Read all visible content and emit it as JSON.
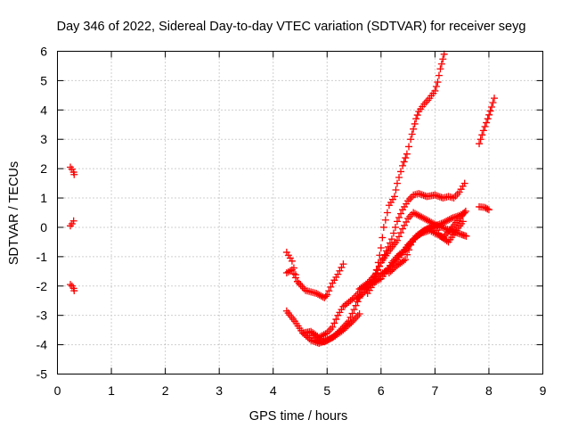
{
  "chart_data": {
    "type": "scatter",
    "title": "Day 346 of 2022, Sidereal Day-to-day VTEC variation (SDTVAR) for receiver seyg",
    "xlabel": "GPS time / hours",
    "ylabel": "SDTVAR / TECUs",
    "xlim": [
      0,
      9
    ],
    "ylim": [
      -5,
      6
    ],
    "xticks": [
      "0",
      "1",
      "2",
      "3",
      "4",
      "5",
      "6",
      "7",
      "8",
      "9"
    ],
    "yticks": [
      "-5",
      "-4",
      "-3",
      "-2",
      "-1",
      "0",
      "1",
      "2",
      "3",
      "4",
      "5",
      "6"
    ],
    "grid": true,
    "marker": "+",
    "colors": {
      "series": "#ff0000",
      "grid": "#a0a0a0",
      "axis": "#000000"
    },
    "tracks": [
      [
        [
          0.24,
          2.05
        ],
        [
          0.27,
          1.98
        ],
        [
          0.3,
          1.88
        ],
        [
          0.31,
          1.8
        ]
      ],
      [
        [
          0.24,
          0.05
        ],
        [
          0.27,
          0.12
        ],
        [
          0.3,
          0.22
        ]
      ],
      [
        [
          0.24,
          -1.95
        ],
        [
          0.27,
          -2.0
        ],
        [
          0.3,
          -2.08
        ],
        [
          0.31,
          -2.16
        ]
      ],
      [
        [
          4.25,
          -0.85
        ],
        [
          4.35,
          -1.15
        ],
        [
          4.45,
          -1.85
        ],
        [
          4.6,
          -2.15
        ],
        [
          4.8,
          -2.25
        ],
        [
          4.95,
          -2.4
        ],
        [
          5.0,
          -2.3
        ],
        [
          5.1,
          -1.9
        ],
        [
          5.2,
          -1.6
        ],
        [
          5.3,
          -1.25
        ]
      ],
      [
        [
          4.25,
          -1.55
        ],
        [
          4.35,
          -1.45
        ],
        [
          4.45,
          -1.85
        ]
      ],
      [
        [
          4.25,
          -2.85
        ],
        [
          4.4,
          -3.2
        ],
        [
          4.55,
          -3.6
        ],
        [
          4.7,
          -3.85
        ],
        [
          4.85,
          -3.95
        ],
        [
          5.0,
          -3.85
        ],
        [
          5.15,
          -3.7
        ],
        [
          5.3,
          -3.5
        ],
        [
          5.45,
          -3.25
        ],
        [
          5.6,
          -2.95
        ]
      ],
      [
        [
          4.55,
          -3.6
        ],
        [
          4.7,
          -3.55
        ],
        [
          4.85,
          -3.75
        ],
        [
          5.0,
          -3.6
        ],
        [
          5.1,
          -3.4
        ],
        [
          5.2,
          -3.0
        ],
        [
          5.3,
          -2.7
        ],
        [
          5.4,
          -2.55
        ],
        [
          5.5,
          -2.4
        ],
        [
          5.6,
          -2.2
        ],
        [
          5.7,
          -2.0
        ],
        [
          5.85,
          -1.85
        ],
        [
          6.0,
          -1.6
        ],
        [
          6.15,
          -1.4
        ],
        [
          6.3,
          -1.1
        ],
        [
          6.5,
          -0.6
        ],
        [
          6.7,
          -0.25
        ],
        [
          6.85,
          -0.05
        ],
        [
          7.0,
          0.05
        ],
        [
          7.15,
          0.15
        ],
        [
          7.3,
          0.3
        ],
        [
          7.45,
          0.4
        ],
        [
          7.55,
          0.5
        ]
      ],
      [
        [
          4.7,
          -3.6
        ],
        [
          4.8,
          -3.85
        ],
        [
          4.95,
          -3.9
        ],
        [
          5.1,
          -3.75
        ],
        [
          5.25,
          -3.5
        ],
        [
          5.4,
          -3.2
        ],
        [
          5.5,
          -2.8
        ],
        [
          5.6,
          -2.4
        ],
        [
          5.7,
          -2.1
        ],
        [
          5.85,
          -1.9
        ],
        [
          6.0,
          -1.75
        ],
        [
          6.1,
          -1.5
        ],
        [
          6.2,
          -1.2
        ],
        [
          6.35,
          -0.9
        ],
        [
          6.45,
          -0.8
        ],
        [
          6.6,
          -0.4
        ],
        [
          6.75,
          -0.2
        ],
        [
          6.9,
          -0.1
        ],
        [
          7.0,
          -0.2
        ],
        [
          7.15,
          -0.35
        ],
        [
          7.3,
          -0.05
        ],
        [
          7.45,
          0.3
        ],
        [
          7.57,
          0.55
        ]
      ],
      [
        [
          5.55,
          -2.45
        ],
        [
          5.7,
          -2.2
        ],
        [
          5.85,
          -1.8
        ],
        [
          6.0,
          -1.2
        ],
        [
          6.15,
          -0.8
        ],
        [
          6.3,
          -0.45
        ],
        [
          6.4,
          -0.05
        ],
        [
          6.5,
          0.3
        ],
        [
          6.6,
          0.5
        ],
        [
          6.75,
          0.35
        ],
        [
          6.9,
          0.2
        ],
        [
          7.05,
          0.05
        ],
        [
          7.2,
          -0.05
        ],
        [
          7.35,
          -0.15
        ],
        [
          7.5,
          -0.25
        ],
        [
          7.58,
          -0.3
        ]
      ],
      [
        [
          5.6,
          -2.1
        ],
        [
          5.75,
          -1.9
        ],
        [
          5.9,
          -1.6
        ],
        [
          6.0,
          -1.2
        ],
        [
          6.1,
          -0.8
        ],
        [
          6.2,
          -0.4
        ],
        [
          6.3,
          0.2
        ],
        [
          6.4,
          0.6
        ],
        [
          6.5,
          0.9
        ],
        [
          6.6,
          1.1
        ],
        [
          6.7,
          1.15
        ],
        [
          6.85,
          1.05
        ],
        [
          7.0,
          1.1
        ],
        [
          7.15,
          1.0
        ],
        [
          7.25,
          1.05
        ],
        [
          7.35,
          1.0
        ],
        [
          7.45,
          1.2
        ],
        [
          7.55,
          1.5
        ]
      ],
      [
        [
          6.15,
          -1.55
        ],
        [
          6.3,
          -1.3
        ],
        [
          6.45,
          -1.1
        ],
        [
          6.55,
          -0.6
        ],
        [
          6.65,
          -0.3
        ],
        [
          6.8,
          -0.1
        ],
        [
          7.0,
          0.0
        ],
        [
          7.1,
          -0.3
        ],
        [
          7.25,
          -0.5
        ],
        [
          7.4,
          -0.1
        ],
        [
          7.52,
          0.2
        ]
      ],
      [
        [
          5.75,
          -2.25
        ],
        [
          5.85,
          -1.95
        ],
        [
          5.95,
          -1.2
        ],
        [
          6.0,
          -0.7
        ],
        [
          6.05,
          0.0
        ],
        [
          6.15,
          0.75
        ],
        [
          6.25,
          1.05
        ],
        [
          6.3,
          1.5
        ],
        [
          6.4,
          2.1
        ],
        [
          6.48,
          2.5
        ],
        [
          6.55,
          3.0
        ],
        [
          6.6,
          3.35
        ],
        [
          6.65,
          3.7
        ],
        [
          6.7,
          3.95
        ],
        [
          6.8,
          4.2
        ],
        [
          6.9,
          4.4
        ],
        [
          7.0,
          4.65
        ],
        [
          7.05,
          4.95
        ],
        [
          7.1,
          5.4
        ],
        [
          7.17,
          5.9
        ]
      ],
      [
        [
          7.82,
          2.85
        ],
        [
          7.9,
          3.3
        ],
        [
          7.98,
          3.7
        ],
        [
          8.05,
          4.1
        ],
        [
          8.1,
          4.4
        ]
      ],
      [
        [
          7.82,
          0.7
        ],
        [
          7.92,
          0.68
        ],
        [
          8.0,
          0.6
        ]
      ]
    ]
  }
}
